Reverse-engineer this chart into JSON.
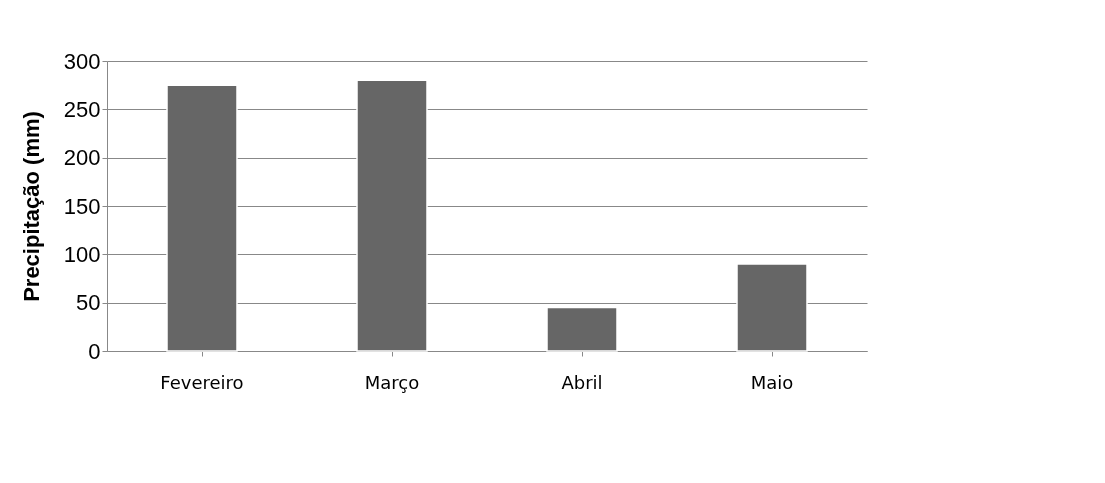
{
  "chart_data": {
    "type": "bar",
    "ylabel": "Precipitação (mm)",
    "categories": [
      "Fevereiro",
      "Março",
      "Abril",
      "Maio"
    ],
    "values": [
      275,
      280,
      45,
      90
    ],
    "color": "#666666",
    "ylim": [
      0,
      300
    ],
    "yticks": [
      0,
      50,
      100,
      150,
      200,
      250,
      300
    ],
    "grid": "y"
  }
}
